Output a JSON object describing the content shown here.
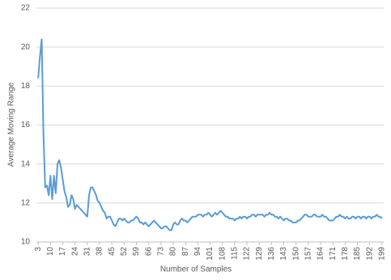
{
  "chart_data": {
    "type": "line",
    "xlabel": "Number of Samples",
    "ylabel": "Average Moving Range",
    "color": "#5b9bd5",
    "grid": true,
    "x": [
      3,
      4,
      5,
      6,
      7,
      8,
      9,
      10,
      11,
      12,
      13,
      14,
      15,
      16,
      17,
      18,
      19,
      20,
      21,
      22,
      23,
      24,
      25,
      26,
      27,
      28,
      29,
      30,
      31,
      32,
      33,
      34,
      35,
      36,
      37,
      38,
      39,
      40,
      41,
      42,
      43,
      44,
      45,
      46,
      47,
      48,
      49,
      50,
      51,
      52,
      53,
      54,
      55,
      56,
      57,
      58,
      59,
      60,
      61,
      62,
      63,
      64,
      65,
      66,
      67,
      68,
      69,
      70,
      71,
      72,
      73,
      74,
      75,
      76,
      77,
      78,
      79,
      80,
      81,
      82,
      83,
      84,
      85,
      86,
      87,
      88,
      89,
      90,
      91,
      92,
      93,
      94,
      95,
      96,
      97,
      98,
      99,
      100,
      101,
      102,
      103,
      104,
      105,
      106,
      107,
      108,
      109,
      110,
      111,
      112,
      113,
      114,
      115,
      116,
      117,
      118,
      119,
      120,
      121,
      122,
      123,
      124,
      125,
      126,
      127,
      128,
      129,
      130,
      131,
      132,
      133,
      134,
      135,
      136,
      137,
      138,
      139,
      140,
      141,
      142,
      143,
      144,
      145,
      146,
      147,
      148,
      149,
      150,
      151,
      152,
      153,
      154,
      155,
      156,
      157,
      158,
      159,
      160,
      161,
      162,
      163,
      164,
      165,
      166,
      167,
      168,
      169,
      170,
      171,
      172,
      173,
      174,
      175,
      176,
      177,
      178,
      179,
      180,
      181,
      182,
      183,
      184,
      185,
      186,
      187,
      188,
      189,
      190,
      191,
      192,
      193,
      194,
      195,
      196,
      197,
      198,
      199
    ],
    "values": [
      18.4,
      19.5,
      20.4,
      15.5,
      12.8,
      12.9,
      12.4,
      13.4,
      12.2,
      13.4,
      12.5,
      14.0,
      14.2,
      13.8,
      13.2,
      12.6,
      12.3,
      11.8,
      11.9,
      12.4,
      12.2,
      11.7,
      11.9,
      11.8,
      11.7,
      11.6,
      11.5,
      11.4,
      11.3,
      12.4,
      12.8,
      12.8,
      12.6,
      12.4,
      12.1,
      12.0,
      11.8,
      11.6,
      11.5,
      11.2,
      11.3,
      11.3,
      11.1,
      10.9,
      10.8,
      11.0,
      11.2,
      11.2,
      11.1,
      11.2,
      11.1,
      11.0,
      11.0,
      11.1,
      11.1,
      11.2,
      11.3,
      11.2,
      11.0,
      11.0,
      10.9,
      11.0,
      10.9,
      10.8,
      10.9,
      11.0,
      11.1,
      11.0,
      10.9,
      10.8,
      10.7,
      10.7,
      10.8,
      10.8,
      10.7,
      10.6,
      10.6,
      10.9,
      11.0,
      10.9,
      10.9,
      11.1,
      11.2,
      11.1,
      11.1,
      11.0,
      11.1,
      11.2,
      11.3,
      11.3,
      11.3,
      11.4,
      11.4,
      11.4,
      11.3,
      11.4,
      11.4,
      11.5,
      11.4,
      11.3,
      11.4,
      11.5,
      11.4,
      11.5,
      11.6,
      11.5,
      11.4,
      11.3,
      11.3,
      11.2,
      11.2,
      11.2,
      11.1,
      11.2,
      11.2,
      11.3,
      11.2,
      11.3,
      11.3,
      11.2,
      11.3,
      11.3,
      11.4,
      11.4,
      11.3,
      11.4,
      11.4,
      11.4,
      11.4,
      11.3,
      11.4,
      11.4,
      11.5,
      11.4,
      11.4,
      11.3,
      11.3,
      11.2,
      11.3,
      11.2,
      11.1,
      11.2,
      11.2,
      11.1,
      11.1,
      11.0,
      11.0,
      11.0,
      11.1,
      11.1,
      11.2,
      11.3,
      11.4,
      11.4,
      11.3,
      11.3,
      11.3,
      11.4,
      11.4,
      11.3,
      11.3,
      11.3,
      11.4,
      11.3,
      11.3,
      11.2,
      11.1,
      11.1,
      11.1,
      11.2,
      11.3,
      11.3,
      11.4,
      11.3,
      11.3,
      11.2,
      11.3,
      11.2,
      11.2,
      11.3,
      11.3,
      11.2,
      11.3,
      11.3,
      11.2,
      11.3,
      11.3,
      11.2,
      11.3,
      11.3,
      11.2,
      11.3,
      11.3,
      11.4,
      11.3,
      11.3,
      11.2
    ],
    "xlim": [
      2,
      200
    ],
    "xticks": [
      3,
      10,
      17,
      24,
      31,
      38,
      45,
      52,
      59,
      66,
      73,
      80,
      87,
      94,
      101,
      108,
      115,
      122,
      129,
      136,
      143,
      150,
      157,
      164,
      171,
      178,
      185,
      192,
      199
    ],
    "ylim": [
      10,
      22
    ],
    "yticks": [
      10,
      12,
      14,
      16,
      18,
      20,
      22
    ]
  }
}
